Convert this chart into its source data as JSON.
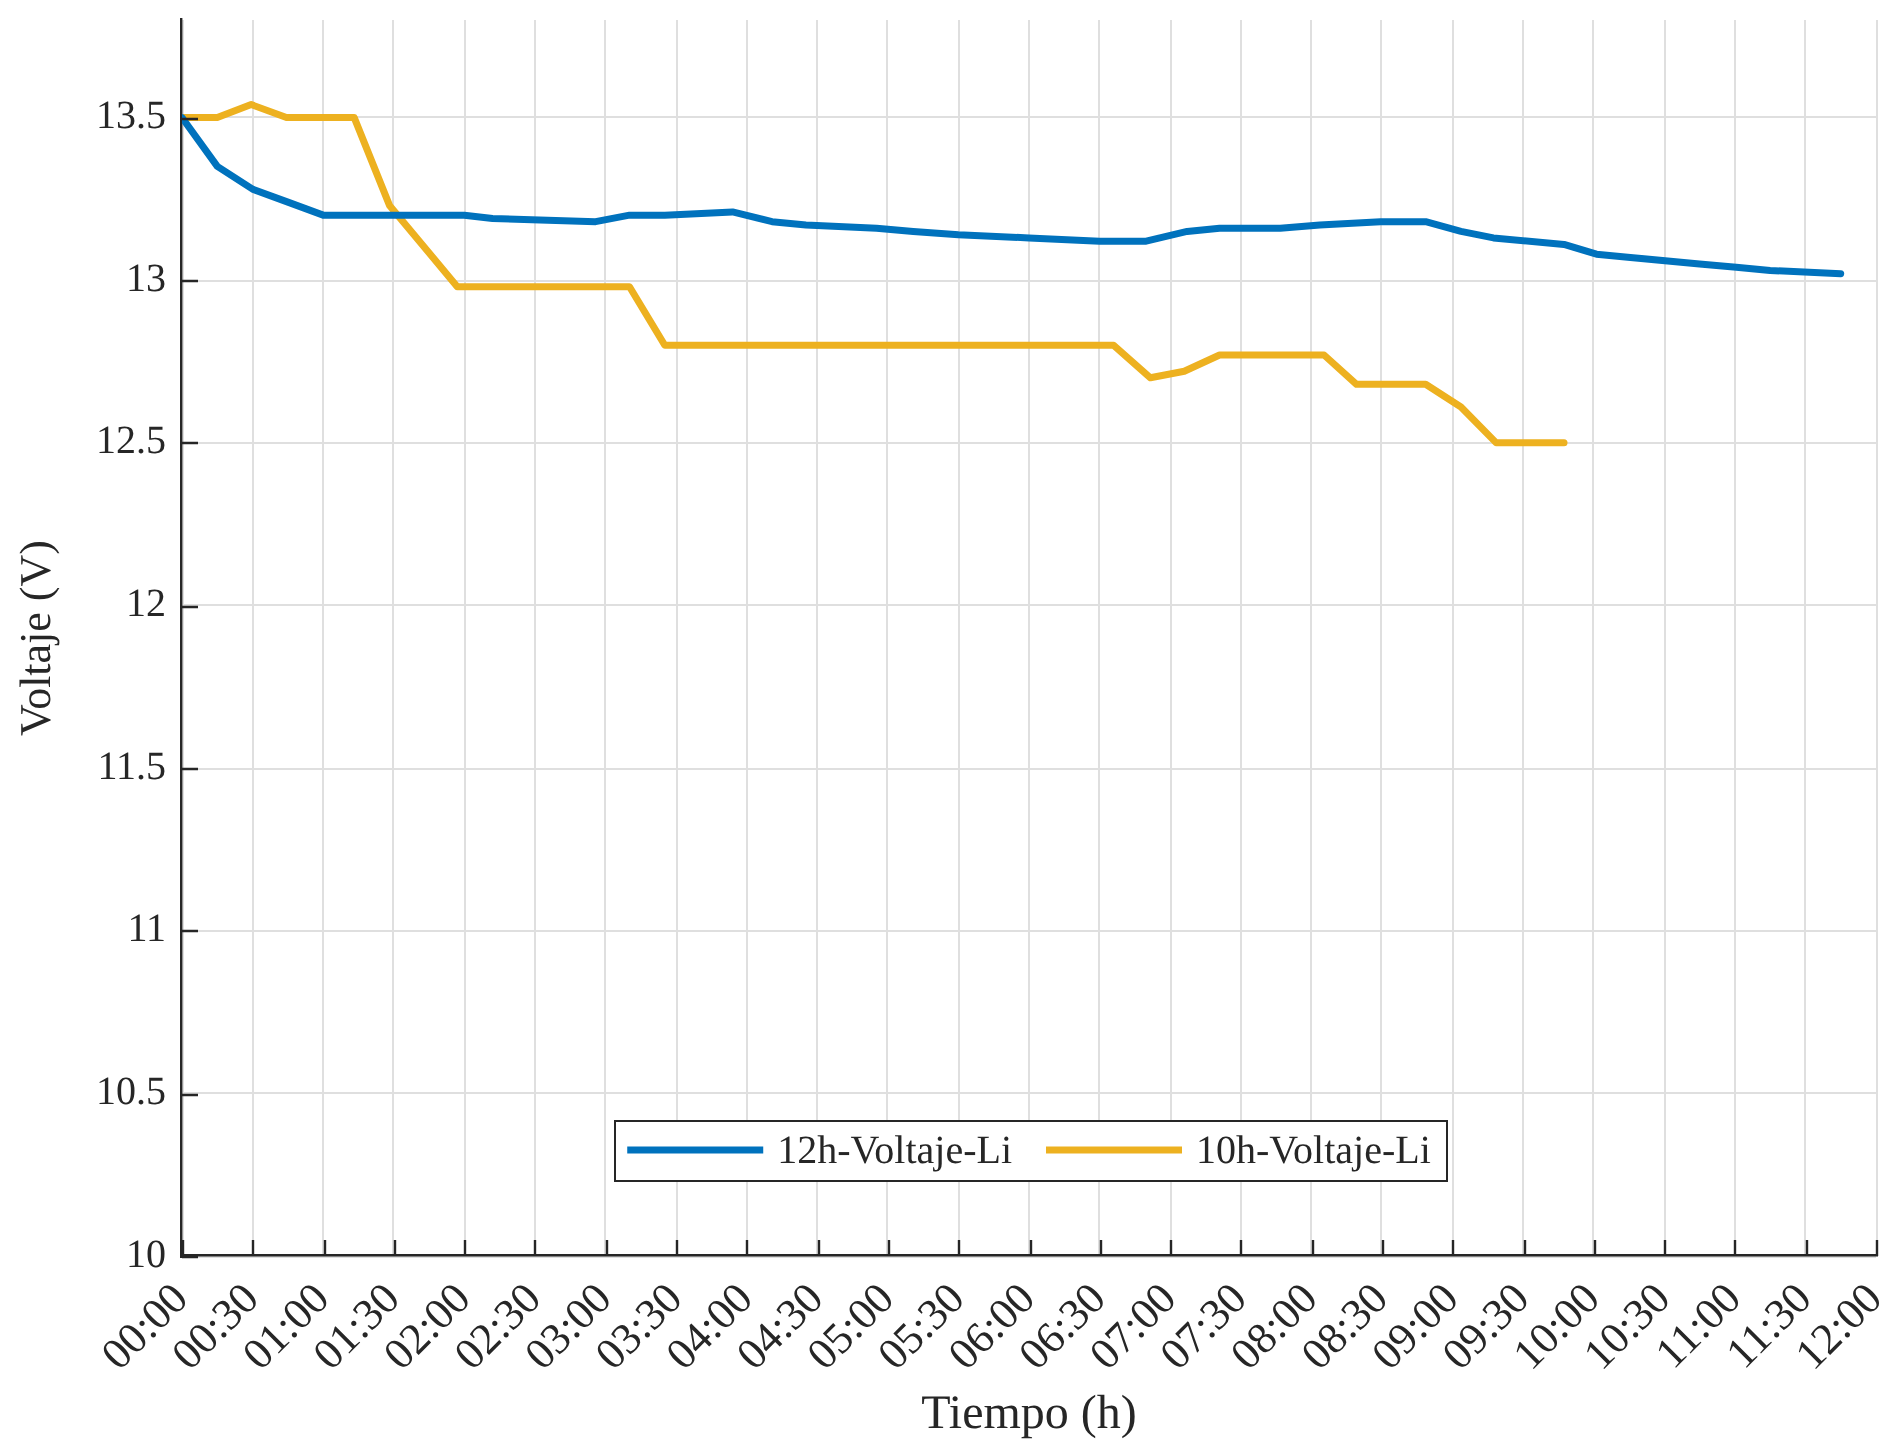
{
  "chart_data": {
    "type": "line",
    "xlabel": "Tiempo (h)",
    "ylabel": "Voltaje (V)",
    "xlim": [
      0,
      12
    ],
    "xticks": [
      {
        "value": 0,
        "label": "00:00"
      },
      {
        "value": 0.5,
        "label": "00:30"
      },
      {
        "value": 1,
        "label": "01:00"
      },
      {
        "value": 1.5,
        "label": "01:30"
      },
      {
        "value": 2,
        "label": "02:00"
      },
      {
        "value": 2.5,
        "label": "02:30"
      },
      {
        "value": 3,
        "label": "03:00"
      },
      {
        "value": 3.5,
        "label": "03:30"
      },
      {
        "value": 4,
        "label": "04:00"
      },
      {
        "value": 4.5,
        "label": "04:30"
      },
      {
        "value": 5,
        "label": "05:00"
      },
      {
        "value": 5.5,
        "label": "05:30"
      },
      {
        "value": 6,
        "label": "06:00"
      },
      {
        "value": 6.5,
        "label": "06:30"
      },
      {
        "value": 7,
        "label": "07:00"
      },
      {
        "value": 7.5,
        "label": "07:30"
      },
      {
        "value": 8,
        "label": "08:00"
      },
      {
        "value": 8.5,
        "label": "08:30"
      },
      {
        "value": 9,
        "label": "09:00"
      },
      {
        "value": 9.5,
        "label": "09:30"
      },
      {
        "value": 10,
        "label": "10:00"
      },
      {
        "value": 10.5,
        "label": "10:30"
      },
      {
        "value": 11,
        "label": "11:00"
      },
      {
        "value": 11.5,
        "label": "11:30"
      },
      {
        "value": 12,
        "label": "12:00"
      }
    ],
    "ylim": [
      10,
      13.8
    ],
    "yticks": [
      10,
      10.5,
      11,
      11.5,
      12,
      12.5,
      13,
      13.5
    ],
    "grid": true,
    "legend": "bottom",
    "series": [
      {
        "name": "12h-Voltaje-Li",
        "color": "#0072bd",
        "x": [
          0,
          0.25,
          0.5,
          0.75,
          1,
          2,
          2.2,
          2.93,
          3.17,
          3.42,
          3.9,
          4.18,
          4.42,
          4.92,
          5.18,
          5.5,
          6,
          6.5,
          6.83,
          7.12,
          7.35,
          7.78,
          8.06,
          8.49,
          8.81,
          9.06,
          9.29,
          9.79,
          10.02,
          10.26,
          10.75,
          11.01,
          11.25,
          11.75
        ],
        "values": [
          13.5,
          13.35,
          13.28,
          13.24,
          13.2,
          13.2,
          13.19,
          13.18,
          13.2,
          13.2,
          13.21,
          13.18,
          13.17,
          13.16,
          13.15,
          13.14,
          13.13,
          13.12,
          13.12,
          13.15,
          13.16,
          13.16,
          13.17,
          13.18,
          13.18,
          13.15,
          13.13,
          13.11,
          13.08,
          13.07,
          13.05,
          13.04,
          13.03,
          13.02
        ]
      },
      {
        "name": "10h-Voltaje-Li",
        "color": "#edb120",
        "x": [
          0,
          0.25,
          0.49,
          0.74,
          1.22,
          1.47,
          1.95,
          3.17,
          3.42,
          6.6,
          6.86,
          7.1,
          7.35,
          8.09,
          8.32,
          8.81,
          9.06,
          9.31,
          9.79
        ],
        "values": [
          13.5,
          13.5,
          13.54,
          13.5,
          13.5,
          13.23,
          12.98,
          12.98,
          12.8,
          12.8,
          12.7,
          12.72,
          12.77,
          12.77,
          12.68,
          12.68,
          12.61,
          12.5,
          12.5
        ]
      }
    ]
  }
}
